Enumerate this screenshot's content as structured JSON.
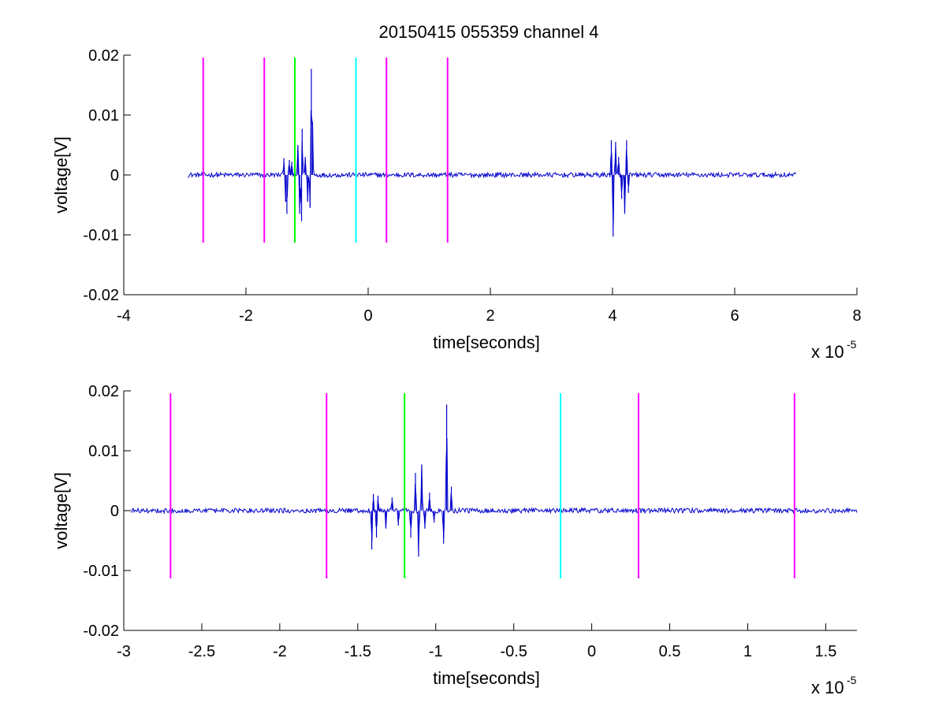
{
  "figure": {
    "title": "20150415 055359 channel 4"
  },
  "chart_data": [
    {
      "type": "line",
      "title": "20150415 055359 channel 4",
      "xlabel": "time[seconds]",
      "ylabel": "voltage[V]",
      "x_multiplier_label": "x 10",
      "x_multiplier_exp": "-5",
      "xlim": [
        -4,
        8
      ],
      "ylim": [
        -0.02,
        0.02
      ],
      "x_ticks": [
        -4,
        -2,
        0,
        2,
        4,
        6,
        8
      ],
      "x_tick_labels": [
        "-4",
        "-2",
        "0",
        "2",
        "4",
        "6",
        "8"
      ],
      "y_ticks": [
        -0.02,
        -0.01,
        0,
        0.01,
        0.02
      ],
      "y_tick_labels": [
        "-0.02",
        "-0.01",
        "0",
        "0.01",
        "0.02"
      ],
      "grid": false,
      "markers": [
        {
          "x": -2.7,
          "color": "#ff00ff",
          "ymin": -0.0113,
          "ymax": 0.0196
        },
        {
          "x": -1.7,
          "color": "#ff00ff",
          "ymin": -0.0113,
          "ymax": 0.0196
        },
        {
          "x": -1.2,
          "color": "#00ff00",
          "ymin": -0.0113,
          "ymax": 0.0196
        },
        {
          "x": -0.2,
          "color": "#00ffff",
          "ymin": -0.0113,
          "ymax": 0.0196
        },
        {
          "x": 0.3,
          "color": "#ff00ff",
          "ymin": -0.0113,
          "ymax": 0.0196
        },
        {
          "x": 1.3,
          "color": "#ff00ff",
          "ymin": -0.0113,
          "ymax": 0.0196
        }
      ],
      "series": [
        {
          "color": "#0000cc",
          "x_range": [
            -2.95,
            7.0
          ],
          "baseline_noise": 0.0004,
          "bursts": [
            {
              "x": -1.38,
              "y": 0.0028
            },
            {
              "x": -1.35,
              "y": -0.0045
            },
            {
              "x": -1.33,
              "y": -0.0065
            },
            {
              "x": -1.29,
              "y": 0.0025
            },
            {
              "x": -1.25,
              "y": 0.0022
            },
            {
              "x": -1.15,
              "y": 0.005
            },
            {
              "x": -1.12,
              "y": -0.0065
            },
            {
              "x": -1.09,
              "y": -0.0077
            },
            {
              "x": -1.08,
              "y": 0.0077
            },
            {
              "x": -1.03,
              "y": 0.003
            },
            {
              "x": -0.99,
              "y": -0.0045
            },
            {
              "x": -0.95,
              "y": -0.0055
            },
            {
              "x": -0.93,
              "y": 0.0177
            },
            {
              "x": -0.91,
              "y": 0.0088
            },
            {
              "x": 3.98,
              "y": 0.0058
            },
            {
              "x": 4.01,
              "y": -0.0103
            },
            {
              "x": 4.05,
              "y": 0.0055
            },
            {
              "x": 4.1,
              "y": 0.003
            },
            {
              "x": 4.15,
              "y": -0.004
            },
            {
              "x": 4.2,
              "y": -0.0065
            },
            {
              "x": 4.23,
              "y": 0.0058
            },
            {
              "x": 4.26,
              "y": -0.003
            }
          ]
        }
      ]
    },
    {
      "type": "line",
      "title": "",
      "xlabel": "time[seconds]",
      "ylabel": "voltage[V]",
      "x_multiplier_label": "x 10",
      "x_multiplier_exp": "-5",
      "xlim": [
        -3.0,
        1.7
      ],
      "ylim": [
        -0.02,
        0.02
      ],
      "x_ticks": [
        -3,
        -2.5,
        -2,
        -1.5,
        -1,
        -0.5,
        0,
        0.5,
        1,
        1.5
      ],
      "x_tick_labels": [
        "-3",
        "-2.5",
        "-2",
        "-1.5",
        "-1",
        "-0.5",
        "0",
        "0.5",
        "1",
        "1.5"
      ],
      "y_ticks": [
        -0.02,
        -0.01,
        0,
        0.01,
        0.02
      ],
      "y_tick_labels": [
        "-0.02",
        "-0.01",
        "0",
        "0.01",
        "0.02"
      ],
      "grid": false,
      "markers": [
        {
          "x": -2.7,
          "color": "#ff00ff",
          "ymin": -0.0113,
          "ymax": 0.0196
        },
        {
          "x": -1.7,
          "color": "#ff00ff",
          "ymin": -0.0113,
          "ymax": 0.0196
        },
        {
          "x": -1.2,
          "color": "#00ff00",
          "ymin": -0.0113,
          "ymax": 0.0196
        },
        {
          "x": -0.2,
          "color": "#00ffff",
          "ymin": -0.0113,
          "ymax": 0.0196
        },
        {
          "x": 0.3,
          "color": "#ff00ff",
          "ymin": -0.0113,
          "ymax": 0.0196
        },
        {
          "x": 1.3,
          "color": "#ff00ff",
          "ymin": -0.0113,
          "ymax": 0.0196
        }
      ],
      "series": [
        {
          "color": "#0000cc",
          "x_range": [
            -2.95,
            1.7
          ],
          "baseline_noise": 0.0004,
          "bursts": [
            {
              "x": -1.4,
              "y": 0.0028
            },
            {
              "x": -1.38,
              "y": -0.0045
            },
            {
              "x": -1.37,
              "y": 0.0025
            },
            {
              "x": -1.41,
              "y": -0.0065
            },
            {
              "x": -1.32,
              "y": -0.003
            },
            {
              "x": -1.28,
              "y": 0.0022
            },
            {
              "x": -1.24,
              "y": -0.0025
            },
            {
              "x": -1.16,
              "y": -0.0045
            },
            {
              "x": -1.13,
              "y": 0.0063
            },
            {
              "x": -1.11,
              "y": -0.0077
            },
            {
              "x": -1.09,
              "y": 0.0077
            },
            {
              "x": -1.07,
              "y": -0.003
            },
            {
              "x": -1.04,
              "y": 0.003
            },
            {
              "x": -1.01,
              "y": -0.002
            },
            {
              "x": -0.95,
              "y": -0.0055
            },
            {
              "x": -0.93,
              "y": 0.0177
            },
            {
              "x": -0.9,
              "y": 0.004
            }
          ]
        }
      ]
    }
  ]
}
